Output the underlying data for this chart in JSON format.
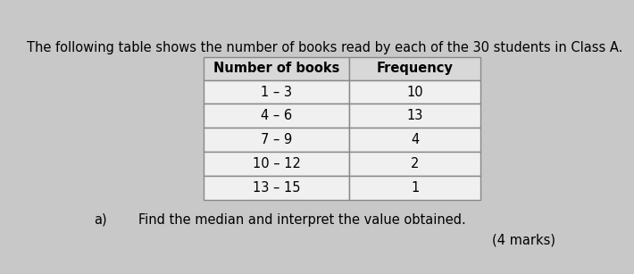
{
  "title": "The following table shows the number of books read by each of the 30 students in Class A.",
  "col1_header": "Number of books",
  "col2_header": "Frequency",
  "rows": [
    [
      "1 – 3",
      "10"
    ],
    [
      "4 – 6",
      "13"
    ],
    [
      "7 – 9",
      "4"
    ],
    [
      "10 – 12",
      "2"
    ],
    [
      "13 – 15",
      "1"
    ]
  ],
  "question_label": "a)",
  "question_text": "Find the median and interpret the value obtained.",
  "marks_text": "(4 marks)",
  "bg_color": "#c8c8c8",
  "header_row_color": "#d8d8d8",
  "data_row_color": "#f0f0f0",
  "table_border_color": "#888888",
  "title_fontsize": 10.5,
  "question_fontsize": 10.5,
  "table_fontsize": 10.5
}
